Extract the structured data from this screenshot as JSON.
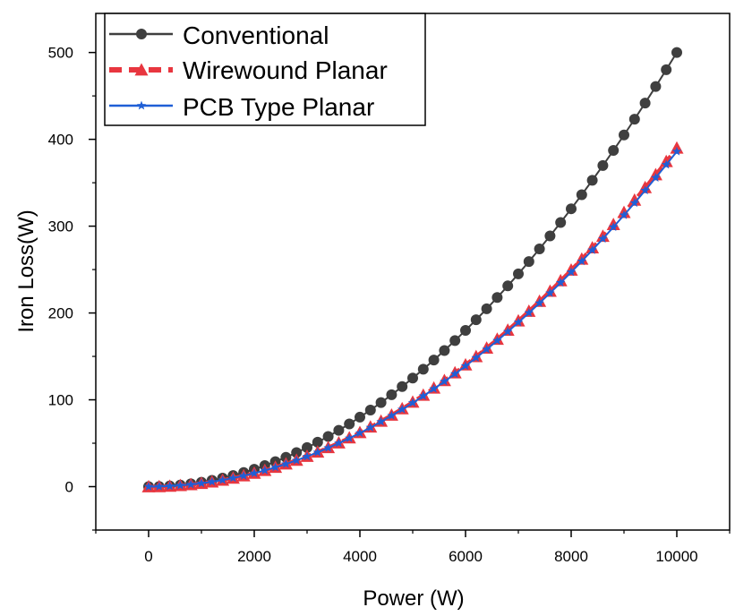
{
  "chart_data": {
    "type": "line",
    "title": "",
    "xlabel": "Power (W)",
    "ylabel": "Iron Loss(W)",
    "xlim": [
      -1000,
      11000
    ],
    "ylim": [
      -50,
      545
    ],
    "xticks": [
      0,
      2000,
      4000,
      6000,
      8000,
      10000
    ],
    "yticks": [
      0,
      100,
      200,
      300,
      400,
      500
    ],
    "grid": false,
    "legend_position": "top-left",
    "x": [
      0,
      200,
      400,
      600,
      800,
      1000,
      1200,
      1400,
      1600,
      1800,
      2000,
      2200,
      2400,
      2600,
      2800,
      3000,
      3200,
      3400,
      3600,
      3800,
      4000,
      4200,
      4400,
      4600,
      4800,
      5000,
      5200,
      5400,
      5600,
      5800,
      6000,
      6200,
      6400,
      6600,
      6800,
      7000,
      7200,
      7400,
      7600,
      7800,
      8000,
      8200,
      8400,
      8600,
      8800,
      9000,
      9200,
      9400,
      9600,
      9800,
      10000
    ],
    "series": [
      {
        "name": "Conventional",
        "color": "#3f3f3f",
        "marker": "circle",
        "line_style": "solid",
        "values": [
          0,
          0.2,
          0.8,
          1.8,
          3.2,
          5,
          7.2,
          9.8,
          12.8,
          16.2,
          20,
          24.2,
          28.8,
          33.8,
          39.2,
          45,
          51.2,
          57.8,
          64.8,
          72.2,
          80,
          88.2,
          96.8,
          105.8,
          115.2,
          125,
          135.2,
          145.8,
          156.8,
          168.2,
          180,
          192.2,
          204.8,
          217.8,
          231.2,
          245,
          259.2,
          273.8,
          288.8,
          304.2,
          320,
          336.2,
          352.8,
          369.8,
          387.2,
          405,
          423.2,
          441.8,
          460.8,
          480.2,
          500
        ]
      },
      {
        "name": "Wirewound Planar",
        "color": "#e8363f",
        "marker": "triangle",
        "line_style": "dashed",
        "values": [
          0,
          0.16,
          0.62,
          1.4,
          2.5,
          3.9,
          5.62,
          7.64,
          9.98,
          12.64,
          15.6,
          18.88,
          22.46,
          26.36,
          30.58,
          35.1,
          39.94,
          45.08,
          50.54,
          56.32,
          62.4,
          68.8,
          75.5,
          82.52,
          89.86,
          97.5,
          105.46,
          113.72,
          122.3,
          131.2,
          140.4,
          149.92,
          159.74,
          169.88,
          180.34,
          191.1,
          202.18,
          213.56,
          225.26,
          237.28,
          249.6,
          262.24,
          275.18,
          288.44,
          302.02,
          315.9,
          330.1,
          344.6,
          359.44,
          374.56,
          390
        ]
      },
      {
        "name": "PCB Type Planar",
        "color": "#1f5fd6",
        "marker": "star",
        "line_style": "solid",
        "values": [
          0,
          0.16,
          0.62,
          1.38,
          2.46,
          3.86,
          5.56,
          7.56,
          9.88,
          12.5,
          15.44,
          18.68,
          22.22,
          26.08,
          30.24,
          34.74,
          39.52,
          44.62,
          50.02,
          55.74,
          61.76,
          68.08,
          74.72,
          81.68,
          88.94,
          96.5,
          104.38,
          112.56,
          121.06,
          129.86,
          138.96,
          148.38,
          158.1,
          168.12,
          178.46,
          189.14,
          200.1,
          211.38,
          222.96,
          234.86,
          247.04,
          259.56,
          272.38,
          285.5,
          298.94,
          312.7,
          326.72,
          341.1,
          355.74,
          370.72,
          386
        ]
      }
    ]
  }
}
